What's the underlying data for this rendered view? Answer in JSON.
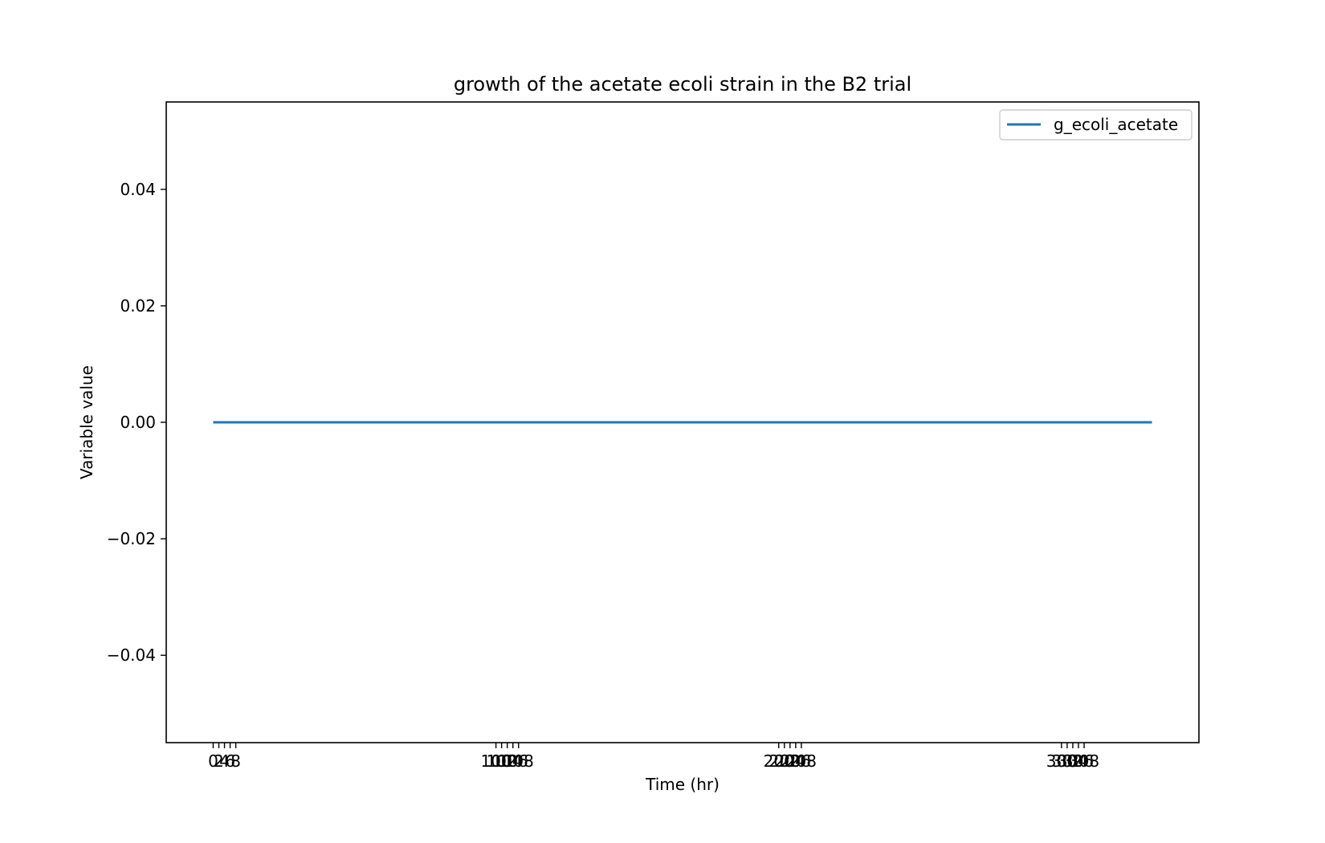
{
  "chart_data": {
    "type": "line",
    "title": "growth of the acetate ecoli strain in the B2 trial",
    "xlabel": "Time (hr)",
    "ylabel": "Variable value",
    "x_ticks": [
      {
        "value": 0,
        "label": "0"
      },
      {
        "value": 2,
        "label": "2"
      },
      {
        "value": 4,
        "label": "4"
      },
      {
        "value": 6,
        "label": "6"
      },
      {
        "value": 8,
        "label": "8"
      },
      {
        "value": 100,
        "label": "100"
      },
      {
        "value": 102,
        "label": "102"
      },
      {
        "value": 104,
        "label": "104"
      },
      {
        "value": 106,
        "label": "106"
      },
      {
        "value": 108,
        "label": "108"
      },
      {
        "value": 200,
        "label": "200"
      },
      {
        "value": 202,
        "label": "202"
      },
      {
        "value": 204,
        "label": "204"
      },
      {
        "value": 206,
        "label": "206"
      },
      {
        "value": 208,
        "label": "208"
      },
      {
        "value": 300,
        "label": "300"
      },
      {
        "value": 302,
        "label": "302"
      },
      {
        "value": 304,
        "label": "304"
      },
      {
        "value": 306,
        "label": "306"
      },
      {
        "value": 308,
        "label": "308"
      }
    ],
    "y_ticks": [
      {
        "value": -0.04,
        "label": "−0.04"
      },
      {
        "value": -0.02,
        "label": "−0.02"
      },
      {
        "value": 0.0,
        "label": "0.00"
      },
      {
        "value": 0.02,
        "label": "0.02"
      },
      {
        "value": 0.04,
        "label": "0.04"
      }
    ],
    "xlim": [
      -16.6,
      348.6
    ],
    "ylim": [
      -0.055,
      0.055
    ],
    "grid": false,
    "legend": "upper right",
    "series": [
      {
        "name": "g_ecoli_acetate",
        "color": "#1f77b4",
        "x": [
          0,
          50,
          100,
          150,
          200,
          250,
          300,
          332
        ],
        "y": [
          0,
          0,
          0,
          0,
          0,
          0,
          0,
          0
        ]
      }
    ]
  }
}
